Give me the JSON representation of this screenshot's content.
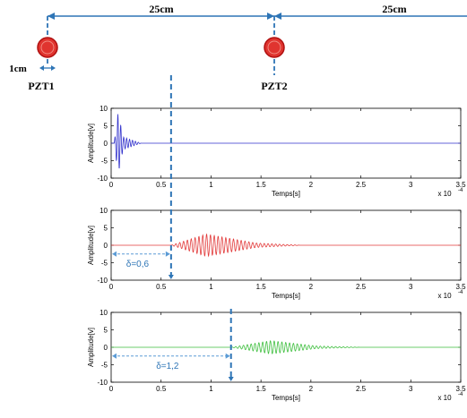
{
  "diagram": {
    "dim_1": "25cm",
    "dim_2": "25cm",
    "sensor_width": "1cm",
    "sensor_1": "PZT1",
    "sensor_2": "PZT2",
    "colors": {
      "sensor_fill": "#e0342f",
      "sensor_outline": "#b01010",
      "dimension_line": "#2e75b6",
      "annotation": "#5b9bd5"
    }
  },
  "chart_data": [
    {
      "type": "line",
      "signal": "excitation burst",
      "color": "#3333cc",
      "ylabel": "Amplitude[v]",
      "xlabel": "Temps[s]",
      "x_exponent": "x 10",
      "x_exponent_power": "-4",
      "xlim": [
        0,
        3.5
      ],
      "ylim": [
        -10,
        10
      ],
      "xticks": [
        "0",
        "0.5",
        "1",
        "1.5",
        "2",
        "2.5",
        "3",
        "3.5"
      ],
      "yticks": [
        "10",
        "5",
        "0",
        "-5",
        "-10"
      ],
      "burst": {
        "start": 0.03,
        "peak": 0.07,
        "end": 0.12,
        "amplitude": 9,
        "decay_end": 0.3
      },
      "delay_label": ""
    },
    {
      "type": "line",
      "signal": "received at PZT2",
      "color": "#e23b3b",
      "ylabel": "Amplitude[v]",
      "xlabel": "Temps[s]",
      "x_exponent": "x 10",
      "x_exponent_power": "-4",
      "xlim": [
        0,
        3.5
      ],
      "ylim": [
        -10,
        10
      ],
      "xticks": [
        "0",
        "0.5",
        "1",
        "1.5",
        "2",
        "2.5",
        "3",
        "3.5"
      ],
      "yticks": [
        "10",
        "5",
        "0",
        "-5",
        "-10"
      ],
      "burst": {
        "start": 0.6,
        "peak": 0.95,
        "end": 1.45,
        "amplitude": 3.2,
        "decay_end": 1.9
      },
      "delay_label": "δ=0,6",
      "delay_value": 0.6
    },
    {
      "type": "line",
      "signal": "received at 50cm",
      "color": "#3fbf3f",
      "ylabel": "Amplitude[v]",
      "xlabel": "Temps[s]",
      "x_exponent": "x 10",
      "x_exponent_power": "-4",
      "xlim": [
        0,
        3.5
      ],
      "ylim": [
        -10,
        10
      ],
      "xticks": [
        "0",
        "0.5",
        "1",
        "1.5",
        "2",
        "2.5",
        "3",
        "3.5"
      ],
      "yticks": [
        "10",
        "5",
        "0",
        "-5",
        "-10"
      ],
      "burst": {
        "start": 1.2,
        "peak": 1.6,
        "end": 2.05,
        "amplitude": 1.9,
        "decay_end": 2.5
      },
      "delay_label": "δ=1,2",
      "delay_value": 1.2
    }
  ]
}
